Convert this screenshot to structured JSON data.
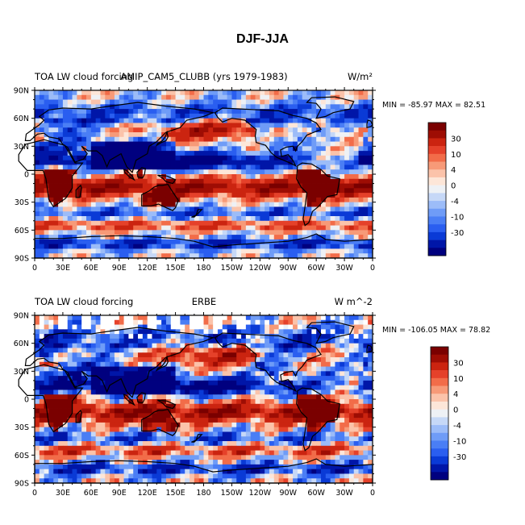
{
  "figure_title": "DJF-JJA",
  "colors": {
    "levels": [
      "#00007f",
      "#0016a8",
      "#0a3ad6",
      "#2a5ef0",
      "#4a7ef5",
      "#6f9cf7",
      "#9cbcf8",
      "#c6d8f7",
      "#eef1f5",
      "#fde6d8",
      "#fbc3aa",
      "#f79a78",
      "#f26c49",
      "#e5412a",
      "#cb2410",
      "#9e0d04",
      "#7a0000"
    ]
  },
  "chart_data": [
    {
      "type": "heatmap",
      "title_left": "TOA LW cloud forcing",
      "title_center": "AMIP_CAM5_CLUBB (yrs 1979-1983)",
      "title_right": "W/m²",
      "stats": "MIN = -85.97  MAX =  82.51",
      "min": -85.97,
      "max": 82.51,
      "xlabel": "",
      "ylabel": "",
      "x_ticks": [
        "0",
        "30E",
        "60E",
        "90E",
        "120E",
        "150E",
        "180",
        "150W",
        "120W",
        "90W",
        "60W",
        "30W",
        "0"
      ],
      "y_ticks": [
        "90N",
        "60N",
        "30N",
        "0",
        "30S",
        "60S",
        "90S"
      ],
      "colorbar_labels": [
        "30",
        "10",
        "4",
        "0",
        "-4",
        "-10",
        "-30"
      ],
      "xlim": [
        0,
        360
      ],
      "ylim": [
        -90,
        90
      ]
    },
    {
      "type": "heatmap",
      "title_left": "TOA LW cloud forcing",
      "title_center": "ERBE",
      "title_right": "W m^-2",
      "stats": "MIN = -106.05  MAX =  78.82",
      "min": -106.05,
      "max": 78.82,
      "xlabel": "",
      "ylabel": "",
      "x_ticks": [
        "0",
        "30E",
        "60E",
        "90E",
        "120E",
        "150E",
        "180",
        "150W",
        "120W",
        "90W",
        "60W",
        "30W",
        "0"
      ],
      "y_ticks": [
        "90N",
        "60N",
        "30N",
        "0",
        "30S",
        "60S",
        "90S"
      ],
      "colorbar_labels": [
        "30",
        "10",
        "4",
        "0",
        "-4",
        "-10",
        "-30"
      ],
      "xlim": [
        0,
        360
      ],
      "ylim": [
        -90,
        90
      ]
    }
  ]
}
